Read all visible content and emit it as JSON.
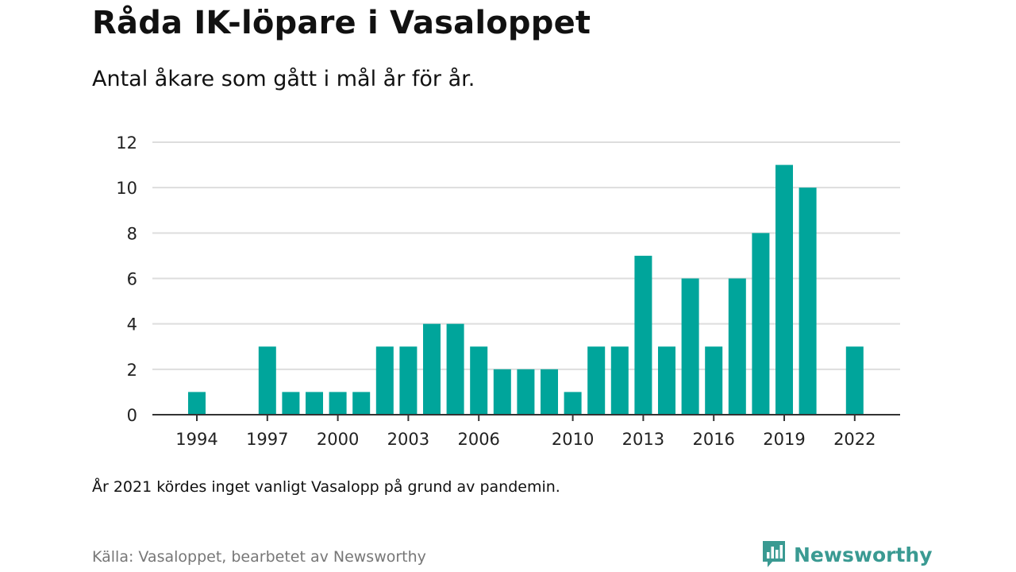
{
  "title": "Råda IK-löpare i Vasaloppet",
  "subtitle": "Antal åkare som gått i mål år för år.",
  "note": "År 2021 kördes inget vanligt Vasalopp på grund av pandemin.",
  "source": "Källa: Vasaloppet, bearbetet av Newsworthy",
  "brand": {
    "name": "Newsworthy",
    "icon": "newsworthy-logo-icon",
    "color": "#3a9a92"
  },
  "colors": {
    "bar": "#00a59b",
    "grid": "#dddddd",
    "axis": "#333333"
  },
  "chart_data": {
    "type": "bar",
    "x": [
      1994,
      1995,
      1996,
      1997,
      1998,
      1999,
      2000,
      2001,
      2002,
      2003,
      2004,
      2005,
      2006,
      2007,
      2008,
      2009,
      2010,
      2011,
      2012,
      2013,
      2014,
      2015,
      2016,
      2017,
      2018,
      2019,
      2020,
      2021,
      2022
    ],
    "values": [
      1,
      0,
      0,
      3,
      1,
      1,
      1,
      1,
      3,
      3,
      4,
      4,
      3,
      2,
      2,
      2,
      1,
      3,
      3,
      7,
      3,
      6,
      3,
      6,
      8,
      11,
      10,
      0,
      3
    ],
    "x_tick_labels": [
      "1994",
      "1997",
      "2000",
      "2003",
      "2006",
      "2010",
      "2013",
      "2016",
      "2019",
      "2022"
    ],
    "y_ticks": [
      0,
      2,
      4,
      6,
      8,
      10,
      12
    ],
    "ylim": [
      0,
      12
    ],
    "xlabel": "",
    "ylabel": "",
    "grid": true
  }
}
